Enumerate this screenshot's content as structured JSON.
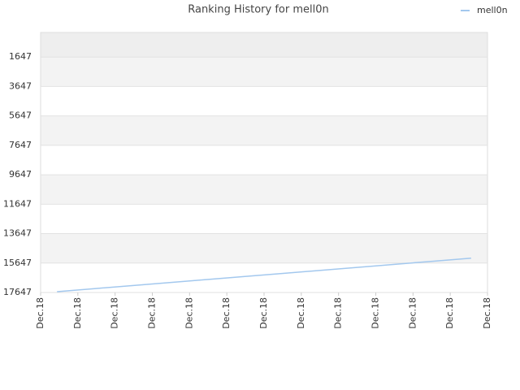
{
  "chart_data": {
    "type": "line",
    "title": "Ranking History for mell0n",
    "x": [
      0.44,
      1.45,
      2.46,
      3.47,
      4.48,
      5.49,
      6.51,
      7.52,
      8.53,
      9.54,
      10.55,
      11.56
    ],
    "series": [
      {
        "name": "mell0n",
        "color": "#a3c8ee",
        "values": [
          17590,
          17383,
          17176,
          16969,
          16762,
          16555,
          16348,
          16141,
          15934,
          15727,
          15520,
          15313
        ]
      }
    ],
    "xlim": [
      0,
      12
    ],
    "xticks": [
      {
        "value": 0,
        "label": "Dec.18"
      },
      {
        "value": 1,
        "label": "Dec.18"
      },
      {
        "value": 2,
        "label": "Dec.18"
      },
      {
        "value": 3,
        "label": "Dec.18"
      },
      {
        "value": 4,
        "label": "Dec.18"
      },
      {
        "value": 5,
        "label": "Dec.18"
      },
      {
        "value": 6,
        "label": "Dec.18"
      },
      {
        "value": 7,
        "label": "Dec.18"
      },
      {
        "value": 8,
        "label": "Dec.18"
      },
      {
        "value": 9,
        "label": "Dec.18"
      },
      {
        "value": 10,
        "label": "Dec.18"
      },
      {
        "value": 11,
        "label": "Dec.18"
      },
      {
        "value": 12,
        "label": "Dec.18"
      }
    ],
    "ylim": [
      17647,
      -20
    ],
    "yticks": [
      1647,
      3647,
      5647,
      7647,
      9647,
      11647,
      13647,
      15647,
      17647
    ],
    "grid": true,
    "legend": "top-right"
  }
}
